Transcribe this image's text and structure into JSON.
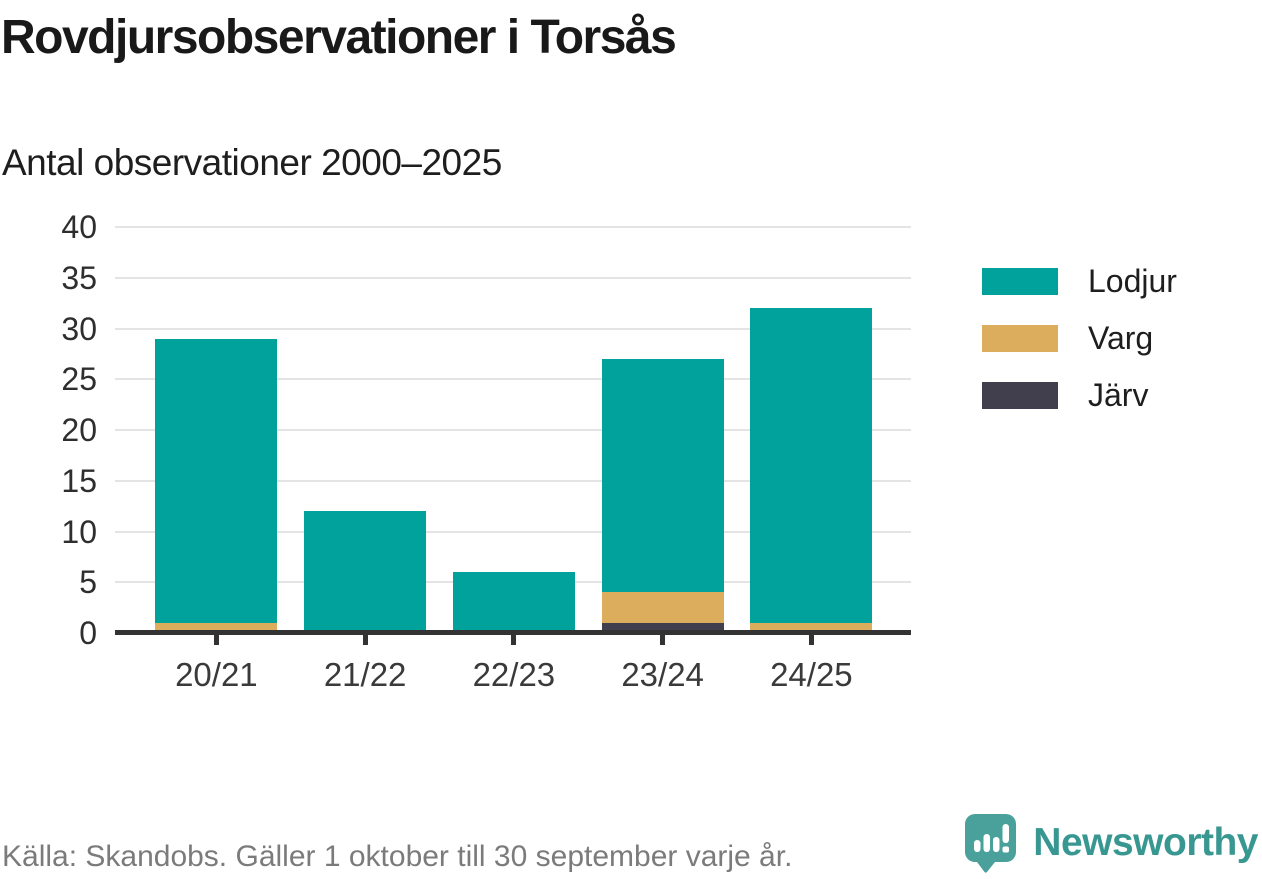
{
  "chart": {
    "brand_name": "Newsworthy"
  },
  "chart_data": {
    "type": "bar",
    "stacked": true,
    "title": "Rovdjursobservationer i Torsås",
    "subtitle": "Antal observationer 2000–2025",
    "source": "Källa: Skandobs. Gäller 1 oktober till 30 september varje år.",
    "categories": [
      "20/21",
      "21/22",
      "22/23",
      "23/24",
      "24/25"
    ],
    "series": [
      {
        "name": "Lodjur",
        "color": "#00a29b",
        "values": [
          28,
          12,
          6,
          23,
          31
        ]
      },
      {
        "name": "Varg",
        "color": "#dbad5c",
        "values": [
          1,
          0,
          0,
          3,
          1
        ]
      },
      {
        "name": "Järv",
        "color": "#413e4d",
        "values": [
          0,
          0,
          0,
          1,
          0
        ]
      }
    ],
    "stack_order_bottom_to_top": [
      "Järv",
      "Varg",
      "Lodjur"
    ],
    "stack_totals": [
      29,
      12,
      6,
      27,
      32
    ],
    "xlabel": "",
    "ylabel": "",
    "ylim": [
      0,
      40
    ],
    "yticks": [
      0,
      5,
      10,
      15,
      20,
      25,
      30,
      35,
      40
    ],
    "grid": true,
    "legend_position": "right",
    "colors": {
      "axis": "#333333",
      "gridline": "#e4e4e4",
      "tick_label": "#2e2e2e",
      "brand_teal": "#399792"
    }
  }
}
